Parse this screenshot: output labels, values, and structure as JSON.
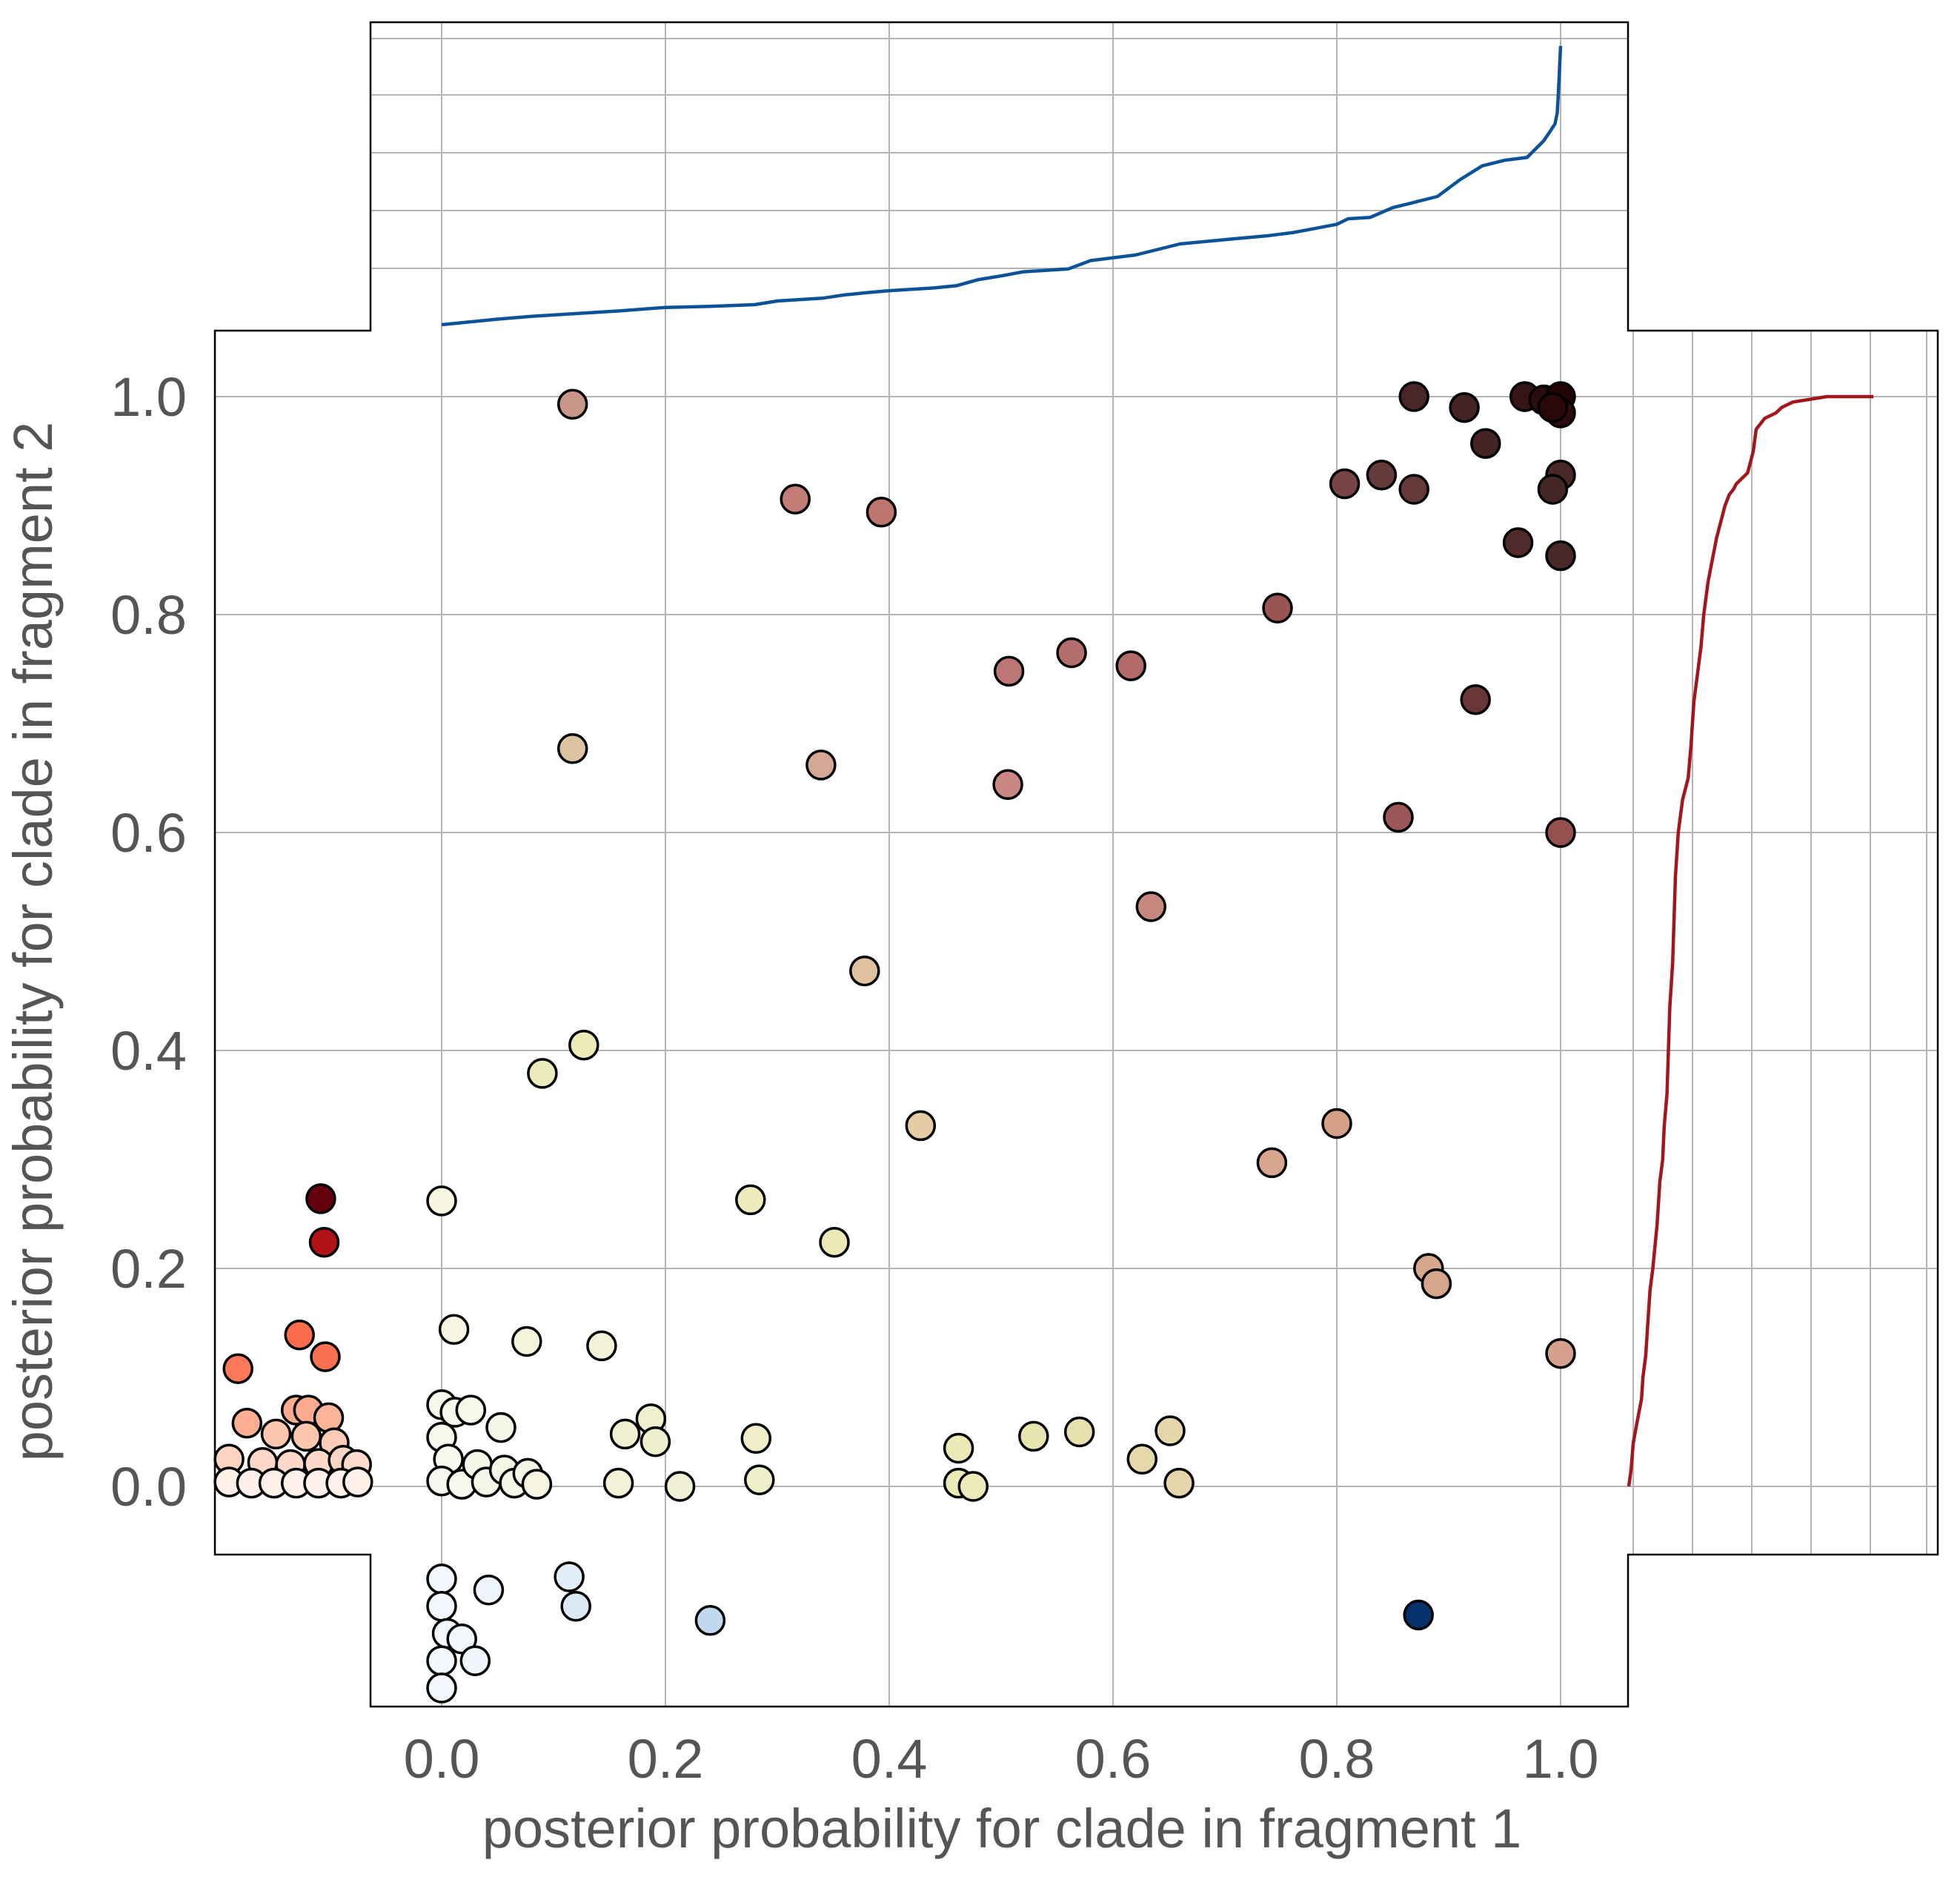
{
  "chart_data": {
    "type": "scatter",
    "xlabel": "posterior probability for clade in fragment 1",
    "ylabel": "posterior probability for clade in fragment 2",
    "xlim": [
      -0.2,
      1.06
    ],
    "ylim": [
      -0.2,
      1.06
    ],
    "xticks": [
      "0.0",
      "0.2",
      "0.4",
      "0.6",
      "0.8",
      "1.0"
    ],
    "yticks": [
      "0.0",
      "0.2",
      "0.4",
      "0.6",
      "0.8",
      "1.0"
    ],
    "grid": true,
    "marginal_top_color": "#0b5299",
    "marginal_right_color": "#a3161c",
    "points": [
      {
        "x": 0.117,
        "y": 0.993,
        "color": "#c9978a"
      },
      {
        "x": 0.316,
        "y": 0.906,
        "color": "#c17d76"
      },
      {
        "x": 0.393,
        "y": 0.894,
        "color": "#bd7570"
      },
      {
        "x": 0.869,
        "y": 1.0,
        "color": "#4a2727"
      },
      {
        "x": 0.914,
        "y": 0.99,
        "color": "#452323"
      },
      {
        "x": 0.933,
        "y": 0.957,
        "color": "#452323"
      },
      {
        "x": 0.968,
        "y": 1.0,
        "color": "#351515"
      },
      {
        "x": 0.985,
        "y": 0.997,
        "color": "#2b0d0d"
      },
      {
        "x": 1.0,
        "y": 1.0,
        "color": "#240505"
      },
      {
        "x": 1.0,
        "y": 0.985,
        "color": "#300c0c"
      },
      {
        "x": 0.993,
        "y": 0.99,
        "color": "#2a0808"
      },
      {
        "x": 0.807,
        "y": 0.92,
        "color": "#784545"
      },
      {
        "x": 0.84,
        "y": 0.928,
        "color": "#653b3b"
      },
      {
        "x": 0.869,
        "y": 0.915,
        "color": "#653939"
      },
      {
        "x": 1.0,
        "y": 0.928,
        "color": "#4a2828"
      },
      {
        "x": 0.993,
        "y": 0.915,
        "color": "#452626"
      },
      {
        "x": 0.962,
        "y": 0.866,
        "color": "#4f2b2b"
      },
      {
        "x": 1.0,
        "y": 0.854,
        "color": "#4a2828"
      },
      {
        "x": 0.747,
        "y": 0.806,
        "color": "#9a5454"
      },
      {
        "x": 0.507,
        "y": 0.748,
        "color": "#bd7676"
      },
      {
        "x": 0.563,
        "y": 0.765,
        "color": "#b56e6e"
      },
      {
        "x": 0.616,
        "y": 0.753,
        "color": "#b26a6a"
      },
      {
        "x": 0.924,
        "y": 0.722,
        "color": "#693737"
      },
      {
        "x": 0.117,
        "y": 0.677,
        "color": "#dcc4a0"
      },
      {
        "x": 0.339,
        "y": 0.662,
        "color": "#d4a796"
      },
      {
        "x": 0.506,
        "y": 0.644,
        "color": "#c98784"
      },
      {
        "x": 0.855,
        "y": 0.614,
        "color": "#9b5757"
      },
      {
        "x": 1.0,
        "y": 0.6,
        "color": "#955050"
      },
      {
        "x": 0.634,
        "y": 0.532,
        "color": "#c5877e"
      },
      {
        "x": 0.378,
        "y": 0.473,
        "color": "#dfc09f"
      },
      {
        "x": 0.127,
        "y": 0.405,
        "color": "#ecebb8"
      },
      {
        "x": 0.09,
        "y": 0.379,
        "color": "#ecebbc"
      },
      {
        "x": 0.428,
        "y": 0.331,
        "color": "#e4cda4"
      },
      {
        "x": 0.8,
        "y": 0.333,
        "color": "#d4a088"
      },
      {
        "x": 0.742,
        "y": 0.297,
        "color": "#d8a68f"
      },
      {
        "x": 0.0,
        "y": 0.262,
        "color": "#f7f6e0"
      },
      {
        "x": 0.276,
        "y": 0.263,
        "color": "#eeecbc"
      },
      {
        "x": 0.351,
        "y": 0.224,
        "color": "#ebe7b6"
      },
      {
        "x": 0.882,
        "y": 0.2,
        "color": "#d7a78c"
      },
      {
        "x": 0.889,
        "y": 0.186,
        "color": "#d6a58c"
      },
      {
        "x": 1.0,
        "y": 0.122,
        "color": "#d6a08f"
      },
      {
        "x": 0.011,
        "y": 0.144,
        "color": "#f6f5e2"
      },
      {
        "x": 0.076,
        "y": 0.133,
        "color": "#f4f3dc"
      },
      {
        "x": 0.143,
        "y": 0.129,
        "color": "#f3f2d8"
      },
      {
        "x": 0.053,
        "y": 0.054,
        "color": "#f6f6e6"
      },
      {
        "x": 0.164,
        "y": 0.048,
        "color": "#f1f0d2"
      },
      {
        "x": 0.187,
        "y": 0.062,
        "color": "#eff0cf"
      },
      {
        "x": 0.191,
        "y": 0.041,
        "color": "#eeefcc"
      },
      {
        "x": 0.158,
        "y": 0.003,
        "color": "#f3f2d8"
      },
      {
        "x": 0.213,
        "y": 0.0,
        "color": "#f1f1d7"
      },
      {
        "x": 0.281,
        "y": 0.044,
        "color": "#efeec8"
      },
      {
        "x": 0.284,
        "y": 0.006,
        "color": "#efefca"
      },
      {
        "x": 0.462,
        "y": 0.035,
        "color": "#ebe9b5"
      },
      {
        "x": 0.462,
        "y": 0.003,
        "color": "#ebeab6"
      },
      {
        "x": 0.475,
        "y": 0.0,
        "color": "#eceab8"
      },
      {
        "x": 0.529,
        "y": 0.046,
        "color": "#e8e4b0"
      },
      {
        "x": 0.57,
        "y": 0.05,
        "color": "#e6e0ad"
      },
      {
        "x": 0.651,
        "y": 0.051,
        "color": "#e3d7ab"
      },
      {
        "x": 0.626,
        "y": 0.025,
        "color": "#e5d9ac"
      },
      {
        "x": 0.659,
        "y": 0.003,
        "color": "#e4d6aa"
      },
      {
        "x": 0.0,
        "y": 0.075,
        "color": "#f7f7ea"
      },
      {
        "x": 0.012,
        "y": 0.068,
        "color": "#f7f7ea"
      },
      {
        "x": 0.026,
        "y": 0.07,
        "color": "#f7f7ea"
      },
      {
        "x": 0.0,
        "y": 0.045,
        "color": "#f8f8ec"
      },
      {
        "x": 0.006,
        "y": 0.025,
        "color": "#f8f8ec"
      },
      {
        "x": 0.0,
        "y": 0.005,
        "color": "#f8f8ee"
      },
      {
        "x": 0.018,
        "y": 0.002,
        "color": "#f8f8ec"
      },
      {
        "x": 0.032,
        "y": 0.02,
        "color": "#f7f7e9"
      },
      {
        "x": 0.04,
        "y": 0.004,
        "color": "#f7f7e9"
      },
      {
        "x": 0.056,
        "y": 0.015,
        "color": "#f6f6e6"
      },
      {
        "x": 0.065,
        "y": 0.003,
        "color": "#f6f6e6"
      },
      {
        "x": 0.077,
        "y": 0.012,
        "color": "#f5f5e3"
      },
      {
        "x": 0.085,
        "y": 0.002,
        "color": "#f5f5e2"
      },
      {
        "x": -0.108,
        "y": 0.264,
        "color": "#67000d"
      },
      {
        "x": -0.105,
        "y": 0.224,
        "color": "#b11218"
      },
      {
        "x": -0.182,
        "y": 0.108,
        "color": "#fb7858"
      },
      {
        "x": -0.127,
        "y": 0.139,
        "color": "#fb6c4c"
      },
      {
        "x": -0.104,
        "y": 0.119,
        "color": "#fb7050"
      },
      {
        "x": -0.174,
        "y": 0.058,
        "color": "#fcae92"
      },
      {
        "x": -0.13,
        "y": 0.07,
        "color": "#fcab8f"
      },
      {
        "x": -0.119,
        "y": 0.07,
        "color": "#fcab8f"
      },
      {
        "x": -0.101,
        "y": 0.063,
        "color": "#fcb398"
      },
      {
        "x": -0.148,
        "y": 0.048,
        "color": "#fdc6af"
      },
      {
        "x": -0.121,
        "y": 0.046,
        "color": "#fdc6af"
      },
      {
        "x": -0.096,
        "y": 0.04,
        "color": "#fdccb8"
      },
      {
        "x": -0.19,
        "y": 0.025,
        "color": "#fdd4c2"
      },
      {
        "x": -0.16,
        "y": 0.022,
        "color": "#fed9c9"
      },
      {
        "x": -0.135,
        "y": 0.02,
        "color": "#fed9c9"
      },
      {
        "x": -0.11,
        "y": 0.021,
        "color": "#fed9c9"
      },
      {
        "x": -0.088,
        "y": 0.024,
        "color": "#fdd5c4"
      },
      {
        "x": -0.076,
        "y": 0.02,
        "color": "#fedbcc"
      },
      {
        "x": -0.19,
        "y": 0.004,
        "color": "#fff0e8"
      },
      {
        "x": -0.17,
        "y": 0.003,
        "color": "#fff1ea"
      },
      {
        "x": -0.15,
        "y": 0.003,
        "color": "#fff1ea"
      },
      {
        "x": -0.13,
        "y": 0.003,
        "color": "#fff1ea"
      },
      {
        "x": -0.11,
        "y": 0.003,
        "color": "#fff1ea"
      },
      {
        "x": -0.09,
        "y": 0.003,
        "color": "#fff0e8"
      },
      {
        "x": -0.075,
        "y": 0.004,
        "color": "#fff0e8"
      },
      {
        "x": 0.0,
        "y": -0.085,
        "color": "#f2f7fd"
      },
      {
        "x": 0.0,
        "y": -0.11,
        "color": "#f2f7fd"
      },
      {
        "x": 0.005,
        "y": -0.135,
        "color": "#f2f7fd"
      },
      {
        "x": 0.0,
        "y": -0.16,
        "color": "#f3f8fe"
      },
      {
        "x": 0.018,
        "y": -0.14,
        "color": "#f2f7fd"
      },
      {
        "x": 0.0,
        "y": -0.185,
        "color": "#f3f8fe"
      },
      {
        "x": 0.03,
        "y": -0.16,
        "color": "#f1f6fc"
      },
      {
        "x": 0.042,
        "y": -0.095,
        "color": "#edf4fc"
      },
      {
        "x": 0.114,
        "y": -0.083,
        "color": "#e1edf8"
      },
      {
        "x": 0.12,
        "y": -0.11,
        "color": "#dae8f6"
      },
      {
        "x": 0.24,
        "y": -0.123,
        "color": "#c1d9ee"
      },
      {
        "x": 0.873,
        "y": -0.118,
        "color": "#08306b"
      }
    ],
    "marginal_top": {
      "x": [
        0.0,
        0.02,
        0.05,
        0.08,
        0.12,
        0.16,
        0.2,
        0.24,
        0.28,
        0.3,
        0.34,
        0.36,
        0.38,
        0.4,
        0.44,
        0.46,
        0.48,
        0.5,
        0.52,
        0.56,
        0.58,
        0.62,
        0.66,
        0.7,
        0.74,
        0.76,
        0.78,
        0.8,
        0.81,
        0.83,
        0.85,
        0.87,
        0.89,
        0.91,
        0.93,
        0.95,
        0.97,
        0.975,
        0.98,
        0.985,
        0.99,
        0.995,
        0.997,
        0.998,
        1.0
      ],
      "level": [
        0.0,
        0.008,
        0.02,
        0.03,
        0.04,
        0.05,
        0.062,
        0.066,
        0.072,
        0.085,
        0.095,
        0.107,
        0.115,
        0.122,
        0.132,
        0.14,
        0.162,
        0.175,
        0.19,
        0.2,
        0.23,
        0.25,
        0.29,
        0.305,
        0.32,
        0.33,
        0.345,
        0.36,
        0.38,
        0.385,
        0.42,
        0.44,
        0.46,
        0.52,
        0.57,
        0.59,
        0.6,
        0.62,
        0.64,
        0.66,
        0.69,
        0.72,
        0.76,
        0.83,
        1.0
      ]
    },
    "marginal_right": {
      "y": [
        0.0,
        0.015,
        0.04,
        0.06,
        0.08,
        0.1,
        0.12,
        0.14,
        0.16,
        0.18,
        0.2,
        0.24,
        0.28,
        0.3,
        0.33,
        0.36,
        0.4,
        0.44,
        0.48,
        0.52,
        0.56,
        0.6,
        0.63,
        0.65,
        0.68,
        0.7,
        0.72,
        0.75,
        0.77,
        0.8,
        0.83,
        0.85,
        0.87,
        0.88,
        0.9,
        0.91,
        0.915,
        0.92,
        0.925,
        0.93,
        0.95,
        0.97,
        0.98,
        0.985,
        0.99,
        0.995,
        1.0,
        1.0
      ],
      "level": [
        0.0,
        0.008,
        0.016,
        0.03,
        0.045,
        0.05,
        0.06,
        0.065,
        0.07,
        0.075,
        0.085,
        0.1,
        0.11,
        0.12,
        0.125,
        0.135,
        0.14,
        0.145,
        0.155,
        0.16,
        0.165,
        0.175,
        0.19,
        0.21,
        0.22,
        0.225,
        0.23,
        0.245,
        0.255,
        0.265,
        0.28,
        0.295,
        0.31,
        0.32,
        0.34,
        0.355,
        0.37,
        0.38,
        0.4,
        0.42,
        0.44,
        0.45,
        0.48,
        0.52,
        0.54,
        0.58,
        0.7,
        0.76
      ]
    }
  }
}
